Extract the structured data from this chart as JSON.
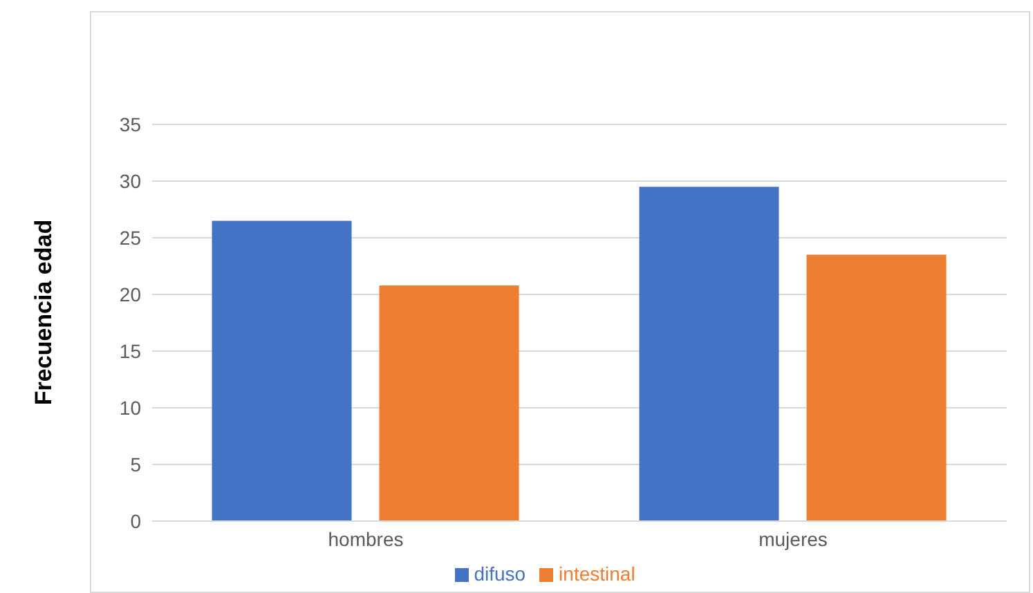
{
  "chart_data": {
    "type": "bar",
    "ylabel": "Frecuencia edad",
    "categories": [
      "hombres",
      "mujeres"
    ],
    "series": [
      {
        "name": "difuso",
        "color": "#4472c4",
        "values": [
          26.5,
          29.5
        ]
      },
      {
        "name": "intestinal",
        "color": "#ed7d31",
        "values": [
          20.8,
          23.5
        ]
      }
    ],
    "ylim": [
      0,
      35
    ],
    "yticks": [
      0,
      5,
      10,
      15,
      20,
      25,
      30,
      35
    ],
    "grid": "y",
    "legend": "bottom"
  }
}
